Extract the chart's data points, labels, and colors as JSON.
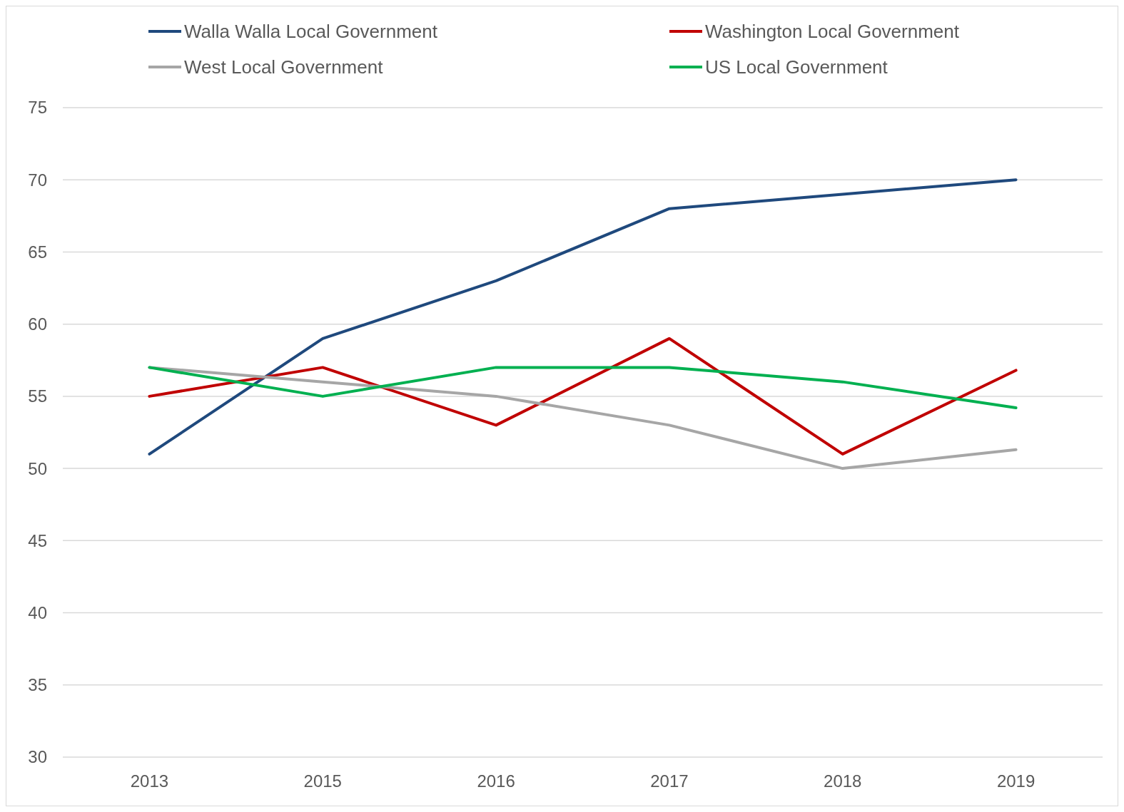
{
  "chart_data": {
    "type": "line",
    "categories": [
      "2013",
      "2015",
      "2016",
      "2017",
      "2018",
      "2019"
    ],
    "series": [
      {
        "name": "Walla Walla Local Government",
        "color": "#1f497d",
        "values": [
          51,
          59,
          63,
          68,
          69,
          70
        ]
      },
      {
        "name": "Washington Local Government",
        "color": "#c00000",
        "values": [
          55,
          57,
          53,
          59,
          51,
          56.8
        ]
      },
      {
        "name": "West Local Government",
        "color": "#a6a6a6",
        "values": [
          57,
          56,
          55,
          53,
          50,
          51.3
        ]
      },
      {
        "name": "US Local Government",
        "color": "#00b050",
        "values": [
          57,
          55,
          57,
          57,
          56,
          54.2
        ]
      }
    ],
    "ylim": [
      30,
      75
    ],
    "yticks": [
      30,
      35,
      40,
      45,
      50,
      55,
      60,
      65,
      70,
      75
    ],
    "grid": "y",
    "legend": "top",
    "marker": "none",
    "line_style": "solid"
  }
}
